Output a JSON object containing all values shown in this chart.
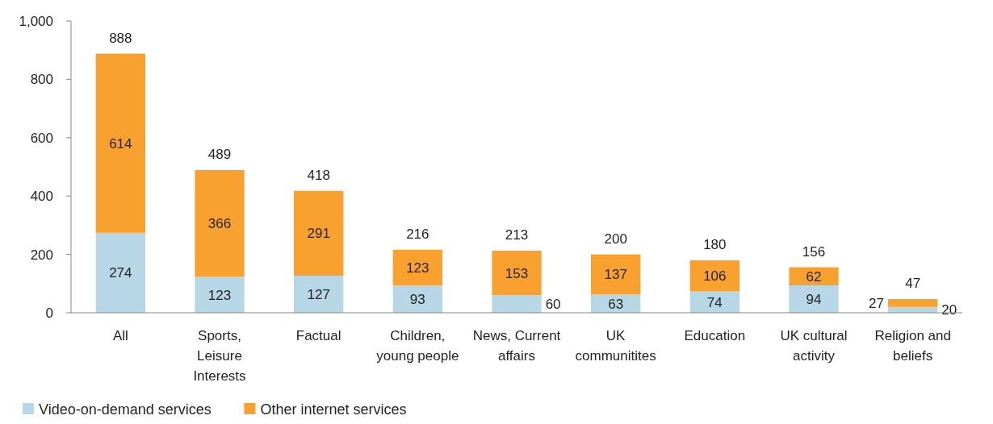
{
  "chart_data": {
    "type": "bar",
    "stacked": true,
    "categories": [
      "All",
      "Sports,\nLeisure\nInterests",
      "Factual",
      "Children,\nyoung people",
      "News, Current\naffairs",
      "UK\ncommunitites",
      "Education",
      "UK cultural\nactivity",
      "Religion and\nbeliefs"
    ],
    "series": [
      {
        "name": "Video-on-demand services",
        "color": "#b7d7e6",
        "values": [
          274,
          123,
          127,
          93,
          60,
          63,
          74,
          94,
          20
        ]
      },
      {
        "name": "Other internet services",
        "color": "#f9a12e",
        "values": [
          614,
          366,
          291,
          123,
          153,
          137,
          106,
          62,
          27
        ]
      }
    ],
    "totals": [
      "888",
      "489",
      "418",
      "216",
      "213",
      "200",
      "180",
      "156",
      "47"
    ],
    "data_labels": true,
    "ylim": [
      0,
      1000
    ],
    "yticks": [
      0,
      200,
      400,
      600,
      800,
      {
        "value": 1000,
        "label": "1,000"
      }
    ],
    "grid": false,
    "legend": "bottom left"
  }
}
